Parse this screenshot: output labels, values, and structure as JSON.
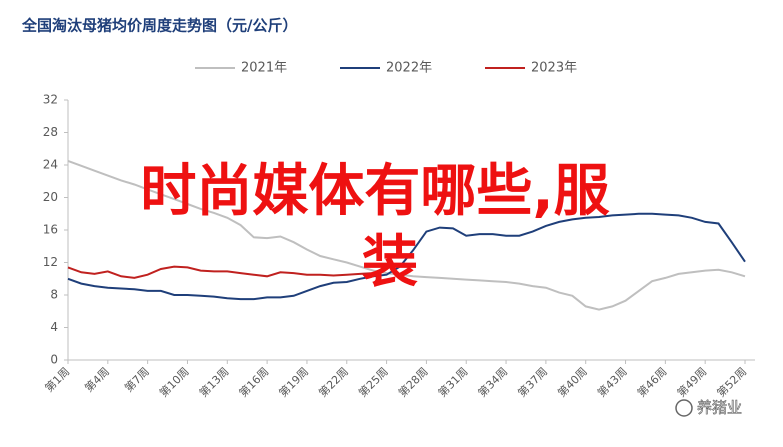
{
  "chart_data": {
    "type": "line",
    "title": "全国淘汰母猪均价周度走势图（元/公斤）",
    "categories": [
      "第1周",
      null,
      null,
      "第4周",
      null,
      null,
      "第7周",
      null,
      null,
      "第10周",
      null,
      null,
      "第13周",
      null,
      null,
      "第16周",
      null,
      null,
      "第19周",
      null,
      null,
      "第22周",
      null,
      null,
      "第25周",
      null,
      null,
      "第28周",
      null,
      null,
      "第31周",
      null,
      null,
      "第34周",
      null,
      null,
      "第37周",
      null,
      null,
      "第40周",
      null,
      null,
      "第43周",
      null,
      null,
      "第46周",
      null,
      null,
      "第49周",
      null,
      null,
      "第52周"
    ],
    "series": [
      {
        "name": "2021年",
        "color": "#bfbfbf",
        "values": [
          24.5,
          23.9,
          23.3,
          22.7,
          22.1,
          21.6,
          21.0,
          20.4,
          19.8,
          19.2,
          18.6,
          18.1,
          17.5,
          16.6,
          15.1,
          15.0,
          15.2,
          14.5,
          13.6,
          12.8,
          12.4,
          12.0,
          11.5,
          11.0,
          10.7,
          10.5,
          10.3,
          10.2,
          10.1,
          10.0,
          9.9,
          9.8,
          9.7,
          9.6,
          9.4,
          9.1,
          8.9,
          8.3,
          7.9,
          6.6,
          6.2,
          6.6,
          7.3,
          8.5,
          9.7,
          10.1,
          10.6,
          10.8,
          11.0,
          11.1,
          10.8,
          10.3
        ]
      },
      {
        "name": "2022年",
        "color": "#1f3f7a",
        "values": [
          10.0,
          9.4,
          9.1,
          8.9,
          8.8,
          8.7,
          8.5,
          8.5,
          8.0,
          8.0,
          7.9,
          7.8,
          7.6,
          7.5,
          7.5,
          7.7,
          7.7,
          7.9,
          8.5,
          9.1,
          9.5,
          9.6,
          10.0,
          10.3,
          10.5,
          11.5,
          13.5,
          15.8,
          16.3,
          16.2,
          15.3,
          15.5,
          15.5,
          15.3,
          15.3,
          15.8,
          16.5,
          17.0,
          17.3,
          17.5,
          17.6,
          17.8,
          17.9,
          18.0,
          18.0,
          17.9,
          17.8,
          17.5,
          17.0,
          16.8,
          14.5,
          12.1
        ]
      },
      {
        "name": "2023年",
        "color": "#c0211f",
        "values": [
          11.4,
          10.8,
          10.6,
          10.9,
          10.3,
          10.1,
          10.5,
          11.2,
          11.5,
          11.4,
          11.0,
          10.9,
          10.9,
          10.7,
          10.5,
          10.3,
          10.8,
          10.7,
          10.5,
          10.5,
          10.4,
          10.5,
          10.6,
          10.7,
          null,
          null,
          null,
          null,
          null,
          null,
          null,
          null,
          null,
          null,
          null,
          null,
          null,
          null,
          null,
          null,
          null,
          null,
          null,
          null,
          null,
          null,
          null,
          null,
          null,
          null,
          null,
          null
        ]
      }
    ],
    "ylim": [
      0,
      32
    ],
    "yticks": [
      0,
      4,
      8,
      12,
      16,
      20,
      24,
      28,
      32
    ],
    "grid": false,
    "legend": "top"
  },
  "overlay": [
    "时尚媒体有哪些,服",
    "装"
  ],
  "watermark": "养猪业"
}
